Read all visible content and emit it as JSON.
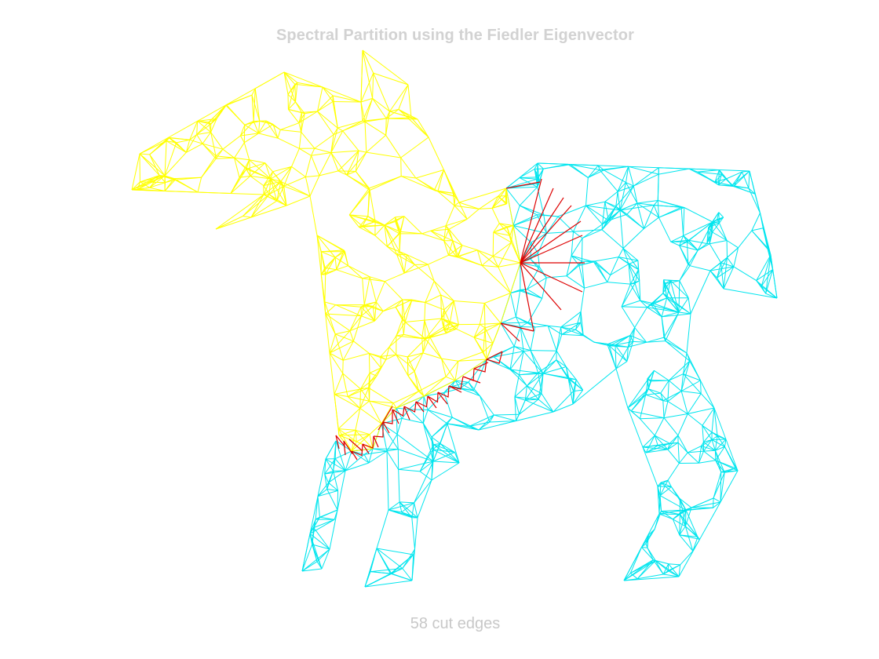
{
  "title": "Spectral Partition using the Fiedler Eigenvector",
  "caption": "58 cut edges",
  "colors": {
    "partition_a": "#ffff00",
    "partition_b": "#00e5ee",
    "cut_edges": "#dd0000",
    "text": "#d0d0d0",
    "background": "#ffffff"
  },
  "cut_edge_count": 58
}
